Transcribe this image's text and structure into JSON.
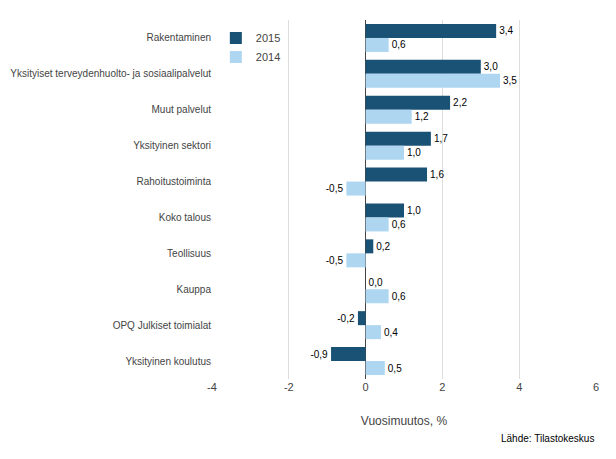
{
  "chart_data": {
    "type": "bar",
    "orientation": "horizontal",
    "categories": [
      "Rakentaminen",
      "Yksityiset terveydenhuolto- ja sosiaalipalvelut",
      "Muut palvelut",
      "Yksityinen sektori",
      "Rahoitustoiminta",
      "Koko talous",
      "Teollisuus",
      "Kauppa",
      "OPQ Julkiset toimialat",
      "Yksityinen koulutus"
    ],
    "series": [
      {
        "name": "2015",
        "color": "#1a5276",
        "values": [
          3.4,
          3.0,
          2.2,
          1.7,
          1.6,
          1.0,
          0.2,
          0.0,
          -0.2,
          -0.9
        ],
        "value_labels": [
          "3,4",
          "3,0",
          "2,2",
          "1,7",
          "1,6",
          "1,0",
          "0,2",
          "0,0",
          "-0,2",
          "-0,9"
        ]
      },
      {
        "name": "2014",
        "color": "#aed6f1",
        "values": [
          0.6,
          3.5,
          1.2,
          1.0,
          -0.5,
          0.6,
          -0.5,
          0.6,
          0.4,
          0.5
        ],
        "value_labels": [
          "0,6",
          "3,5",
          "1,2",
          "1,0",
          "-0,5",
          "0,6",
          "-0,5",
          "0,6",
          "0,4",
          "0,5"
        ]
      }
    ],
    "xlabel": "Vuosimuutos, %",
    "xlim": [
      -4,
      6
    ],
    "xticks": [
      -4,
      -2,
      0,
      2,
      4,
      6
    ],
    "grid": true,
    "legend": "upper left",
    "data_labels": true,
    "annotations": [
      {
        "text": "Lähde: Tilastokeskus"
      }
    ]
  }
}
